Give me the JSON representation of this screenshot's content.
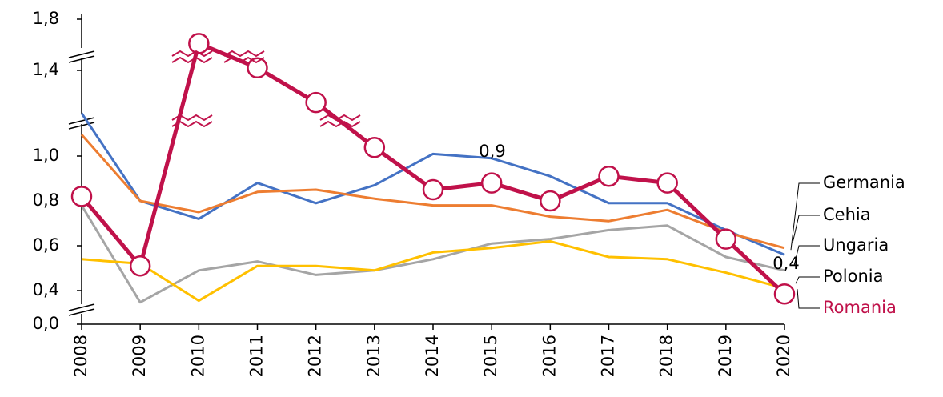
{
  "chart_data": {
    "type": "line",
    "categories": [
      "2008",
      "2009",
      "2010",
      "2011",
      "2012",
      "2013",
      "2014",
      "2015",
      "2016",
      "2017",
      "2018",
      "2019",
      "2020"
    ],
    "series": [
      {
        "name": "Germania",
        "color": "#4472c4",
        "values": [
          1.2,
          0.8,
          0.72,
          0.88,
          0.79,
          0.87,
          1.01,
          0.99,
          0.91,
          0.79,
          0.79,
          0.67,
          0.56
        ]
      },
      {
        "name": "Cehia",
        "color": "#ed7d31",
        "values": [
          1.1,
          0.8,
          0.75,
          0.84,
          0.85,
          0.81,
          0.78,
          0.78,
          0.73,
          0.71,
          0.76,
          0.66,
          0.59
        ]
      },
      {
        "name": "Ungaria",
        "color": "#a5a5a5",
        "values": [
          0.78,
          0.26,
          0.49,
          0.53,
          0.47,
          0.49,
          0.54,
          0.61,
          0.63,
          0.67,
          0.69,
          0.55,
          0.49
        ]
      },
      {
        "name": "Polonia",
        "color": "#ffc000",
        "values": [
          0.54,
          0.52,
          0.28,
          0.51,
          0.51,
          0.49,
          0.57,
          0.59,
          0.62,
          0.55,
          0.54,
          0.48,
          0.41
        ]
      },
      {
        "name": "Romania",
        "color": "#c0114a",
        "values": [
          0.82,
          0.51,
          1.61,
          1.42,
          1.25,
          1.04,
          0.85,
          0.88,
          0.8,
          0.91,
          0.88,
          0.63,
          0.36
        ]
      }
    ],
    "ylim": [
      0,
      1.8
    ],
    "yticks": [
      {
        "value": 0,
        "label": "0,0"
      },
      {
        "value": 0.4,
        "label": "0,4"
      },
      {
        "value": 0.6,
        "label": "0,6"
      },
      {
        "value": 0.8,
        "label": "0,8"
      },
      {
        "value": 1.0,
        "label": "1,0"
      },
      {
        "value": 1.4,
        "label": "1,4"
      },
      {
        "value": 1.8,
        "label": "1,8"
      }
    ],
    "annotations": [
      "0,9",
      "0,4"
    ]
  }
}
